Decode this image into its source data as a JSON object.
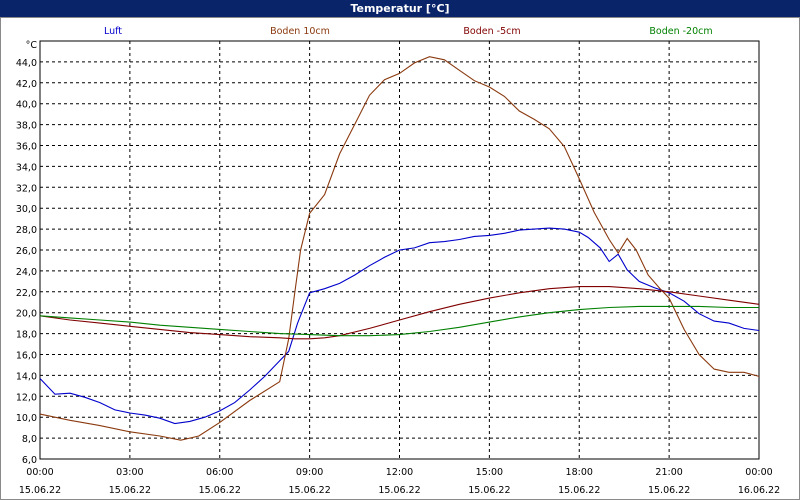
{
  "window": {
    "title": "Temperatur [°C]"
  },
  "chart_data": {
    "type": "line",
    "yunit": "°C",
    "ylim": [
      6,
      46
    ],
    "yticks": [
      "6,0",
      "8,0",
      "10,0",
      "12,0",
      "14,0",
      "16,0",
      "18,0",
      "20,0",
      "22,0",
      "24,0",
      "26,0",
      "28,0",
      "30,0",
      "32,0",
      "34,0",
      "36,0",
      "38,0",
      "40,0",
      "42,0",
      "44,0"
    ],
    "xlim": [
      0,
      24
    ],
    "xticks": [
      {
        "time": "00:00",
        "date": "15.06.22"
      },
      {
        "time": "03:00",
        "date": "15.06.22"
      },
      {
        "time": "06:00",
        "date": "15.06.22"
      },
      {
        "time": "09:00",
        "date": "15.06.22"
      },
      {
        "time": "12:00",
        "date": "15.06.22"
      },
      {
        "time": "15:00",
        "date": "15.06.22"
      },
      {
        "time": "18:00",
        "date": "15.06.22"
      },
      {
        "time": "21:00",
        "date": "15.06.22"
      },
      {
        "time": "00:00",
        "date": "16.06.22"
      }
    ],
    "grid": true,
    "legend_position": "top",
    "series": [
      {
        "name": "Luft",
        "color": "#0000cc",
        "x": [
          0,
          0.5,
          1,
          1.5,
          2,
          2.5,
          3,
          3.5,
          4,
          4.5,
          5,
          5.5,
          6,
          6.5,
          7,
          7.5,
          8,
          8.3,
          8.6,
          9,
          9.5,
          10,
          10.5,
          11,
          11.5,
          12,
          12.5,
          13,
          13.5,
          14,
          14.5,
          15,
          15.5,
          16,
          16.5,
          17,
          17.5,
          18,
          18.3,
          18.7,
          19,
          19.3,
          19.6,
          20,
          20.5,
          21,
          21.5,
          22,
          22.5,
          23,
          23.5,
          24
        ],
        "y": [
          13.7,
          12.2,
          12.3,
          11.9,
          11.4,
          10.7,
          10.4,
          10.2,
          9.9,
          9.4,
          9.6,
          10.0,
          10.6,
          11.4,
          12.6,
          13.9,
          15.4,
          16.3,
          19.0,
          21.9,
          22.3,
          22.8,
          23.6,
          24.5,
          25.3,
          26.0,
          26.2,
          26.7,
          26.8,
          27.0,
          27.3,
          27.4,
          27.6,
          27.9,
          28.0,
          28.1,
          28.0,
          27.7,
          27.2,
          26.2,
          24.9,
          25.6,
          24.1,
          23.0,
          22.4,
          21.9,
          21.1,
          19.9,
          19.2,
          19.0,
          18.5,
          18.3
        ]
      },
      {
        "name": "Boden 10cm",
        "color": "#8b3a0f",
        "x": [
          0,
          1,
          2,
          3,
          4,
          4.7,
          5.3,
          6,
          7,
          8,
          8.3,
          8.5,
          8.7,
          9,
          9.5,
          10,
          10.5,
          11,
          11.5,
          12,
          12.5,
          13,
          13.5,
          14,
          14.5,
          15,
          15.5,
          16,
          16.5,
          17,
          17.5,
          18,
          18.5,
          19,
          19.3,
          19.6,
          19.9,
          20.3,
          20.7,
          21,
          21.5,
          22,
          22.5,
          23,
          23.5,
          24
        ],
        "y": [
          10.3,
          9.7,
          9.2,
          8.6,
          8.2,
          7.8,
          8.2,
          9.5,
          11.6,
          13.4,
          17.5,
          21.8,
          26.0,
          29.5,
          31.3,
          35.2,
          38.0,
          40.8,
          42.3,
          42.9,
          43.9,
          44.5,
          44.2,
          43.2,
          42.2,
          41.6,
          40.7,
          39.3,
          38.5,
          37.6,
          35.9,
          32.8,
          29.6,
          27.0,
          25.7,
          27.1,
          26.0,
          23.6,
          22.3,
          21.4,
          18.4,
          16.0,
          14.6,
          14.3,
          14.3,
          13.9
        ]
      },
      {
        "name": "Boden -5cm",
        "color": "#800000",
        "x": [
          0,
          1,
          2,
          3,
          4,
          5,
          6,
          7,
          8,
          8.5,
          9,
          9.5,
          10,
          11,
          12,
          13,
          14,
          15,
          16,
          17,
          18,
          19,
          20,
          21,
          22,
          23,
          24
        ],
        "y": [
          19.7,
          19.3,
          19.0,
          18.7,
          18.4,
          18.1,
          17.9,
          17.7,
          17.6,
          17.5,
          17.5,
          17.6,
          17.8,
          18.5,
          19.3,
          20.1,
          20.8,
          21.4,
          21.9,
          22.3,
          22.5,
          22.5,
          22.3,
          22.0,
          21.6,
          21.2,
          20.8
        ]
      },
      {
        "name": "Boden -20cm",
        "color": "#008000",
        "x": [
          0,
          1,
          2,
          3,
          4,
          5,
          6,
          7,
          8,
          9,
          10,
          11,
          12,
          13,
          14,
          15,
          16,
          17,
          18,
          19,
          20,
          21,
          22,
          23,
          24
        ],
        "y": [
          19.7,
          19.5,
          19.3,
          19.1,
          18.8,
          18.6,
          18.4,
          18.2,
          18.0,
          17.9,
          17.8,
          17.8,
          17.9,
          18.2,
          18.6,
          19.1,
          19.6,
          20.0,
          20.3,
          20.5,
          20.6,
          20.6,
          20.6,
          20.5,
          20.5
        ]
      }
    ]
  }
}
